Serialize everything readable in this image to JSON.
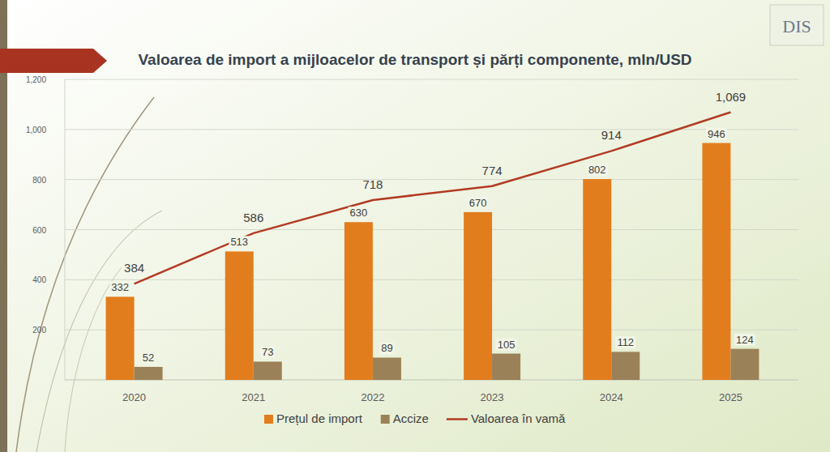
{
  "logo_text": "DIS",
  "chart_data": {
    "type": "bar",
    "title": "Valoarea de import a mijloacelor de transport și părți componente, mln/USD",
    "categories": [
      "2020",
      "2021",
      "2022",
      "2023",
      "2024",
      "2025"
    ],
    "series": [
      {
        "name": "Prețul de import",
        "type": "bar",
        "color": "#e27d1e",
        "values": [
          332,
          513,
          630,
          670,
          802,
          946
        ]
      },
      {
        "name": "Accize",
        "type": "bar",
        "color": "#9b8158",
        "values": [
          52,
          73,
          89,
          105,
          112,
          124
        ]
      },
      {
        "name": "Valoarea în vamă",
        "type": "line",
        "color": "#b23b23",
        "values": [
          384,
          586,
          718,
          774,
          914,
          1069
        ],
        "value_labels": [
          "384",
          "586",
          "718",
          "774",
          "914",
          "1,069"
        ]
      }
    ],
    "ylim": [
      0,
      1200
    ],
    "yticks": [
      200,
      400,
      600,
      800,
      {
        "value": 1000,
        "label": "1,000"
      },
      {
        "value": 1200,
        "label": "1,200"
      }
    ],
    "grid": true,
    "legend": "bottom",
    "data_labels": true
  }
}
